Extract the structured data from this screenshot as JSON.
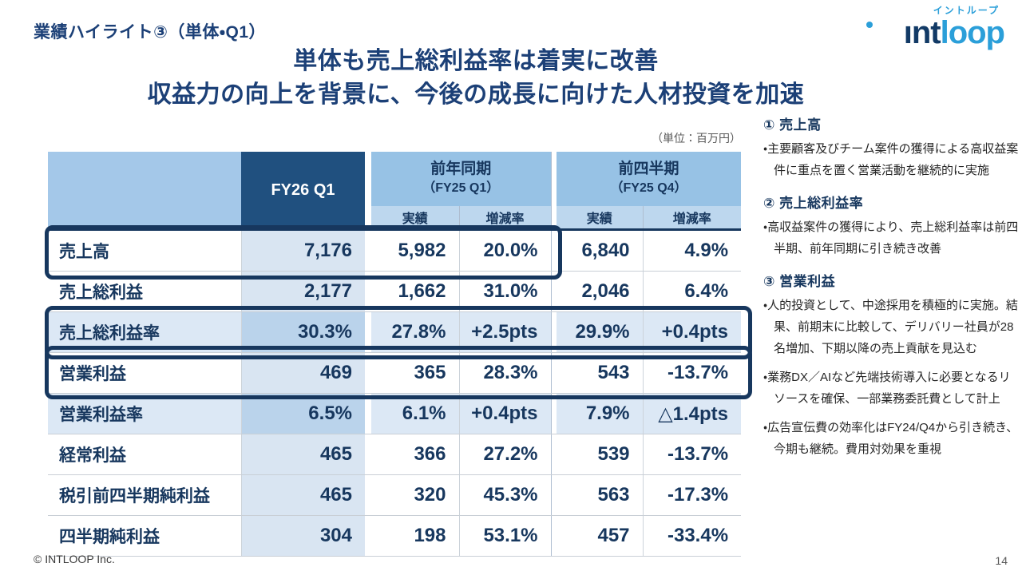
{
  "slide": {
    "title": "業績ハイライト③（単体・Q1）",
    "headline_line1": "単体も売上総利益率は着実に改善",
    "headline_line2": "収益力の向上を背景に、今後の成長に向けた人材投資を加速",
    "unit_note": "（単位：百万円）",
    "footer": "© INTLOOP  Inc.",
    "page_number": "14"
  },
  "logo": {
    "katakana": "イントループ",
    "word_int": "ınt",
    "word_loop": "loop"
  },
  "colors": {
    "navy_text": "#17375E",
    "title_navy": "#1C4077",
    "header_dark_bg": "#20507F",
    "header_blue_bg": "#97C2E5",
    "subheader_bg": "#BDD7EE",
    "rate_row_bg": "#DCE8F5",
    "fy26_cell_bg": "#D9E5F2",
    "fy26_rate_cell_bg": "#BAD3EB",
    "highlight_border": "#17375E",
    "logo_blue": "#2B9FD9"
  },
  "table": {
    "current_col": "FY26 Q1",
    "group_yoy_line1": "前年同期",
    "group_yoy_line2": "（FY25 Q1）",
    "group_qoq_line1": "前四半期",
    "group_qoq_line2": "（FY25 Q4）",
    "sub_actual": "実績",
    "sub_rate": "増減率",
    "rows": [
      {
        "label": "売上高",
        "fy26": "7,176",
        "yoy_actual": "5,982",
        "yoy_rate": "20.0%",
        "qoq_actual": "6,840",
        "qoq_rate": "4.9%",
        "type": "normal",
        "highlight": "partial"
      },
      {
        "label": "売上総利益",
        "fy26": "2,177",
        "yoy_actual": "1,662",
        "yoy_rate": "31.0%",
        "qoq_actual": "2,046",
        "qoq_rate": "6.4%",
        "type": "normal",
        "highlight": "none"
      },
      {
        "label": "売上総利益率",
        "fy26": "30.3%",
        "yoy_actual": "27.8%",
        "yoy_rate": "+2.5pts",
        "qoq_actual": "29.9%",
        "qoq_rate": "+0.4pts",
        "type": "rate",
        "highlight": "full"
      },
      {
        "label": "営業利益",
        "fy26": "469",
        "yoy_actual": "365",
        "yoy_rate": "28.3%",
        "qoq_actual": "543",
        "qoq_rate": "-13.7%",
        "type": "normal",
        "highlight": "full"
      },
      {
        "label": "営業利益率",
        "fy26": "6.5%",
        "yoy_actual": "6.1%",
        "yoy_rate": "+0.4pts",
        "qoq_actual": "7.9%",
        "qoq_rate": "△1.4pts",
        "type": "rate",
        "highlight": "none"
      },
      {
        "label": "経常利益",
        "fy26": "465",
        "yoy_actual": "366",
        "yoy_rate": "27.2%",
        "qoq_actual": "539",
        "qoq_rate": "-13.7%",
        "type": "normal",
        "highlight": "none"
      },
      {
        "label": "税引前四半期純利益",
        "fy26": "465",
        "yoy_actual": "320",
        "yoy_rate": "45.3%",
        "qoq_actual": "563",
        "qoq_rate": "-17.3%",
        "type": "normal",
        "highlight": "none"
      },
      {
        "label": "四半期純利益",
        "fy26": "304",
        "yoy_actual": "198",
        "yoy_rate": "53.1%",
        "qoq_actual": "457",
        "qoq_rate": "-33.4%",
        "type": "normal",
        "highlight": "none"
      }
    ]
  },
  "sidebar": {
    "sections": [
      {
        "heading": "① 売上高",
        "bullets": [
          "主要顧客及びチーム案件の獲得による高収益案件に重点を置く営業活動を継続的に実施"
        ]
      },
      {
        "heading": "② 売上総利益率",
        "bullets": [
          "高収益案件の獲得により、売上総利益率は前四半期、前年同期に引き続き改善"
        ]
      },
      {
        "heading": "③ 営業利益",
        "bullets": [
          "人的投資として、中途採用を積極的に実施。結果、前期末に比較して、デリバリー社員が28名増加、下期以降の売上貢献を見込む",
          "業務DX／AIなど先端技術導入に必要となるリソースを確保、一部業務委託費として計上",
          "広告宣伝費の効率化はFY24/Q4から引き続き、今期も継続。費用対効果を重視"
        ]
      }
    ]
  }
}
